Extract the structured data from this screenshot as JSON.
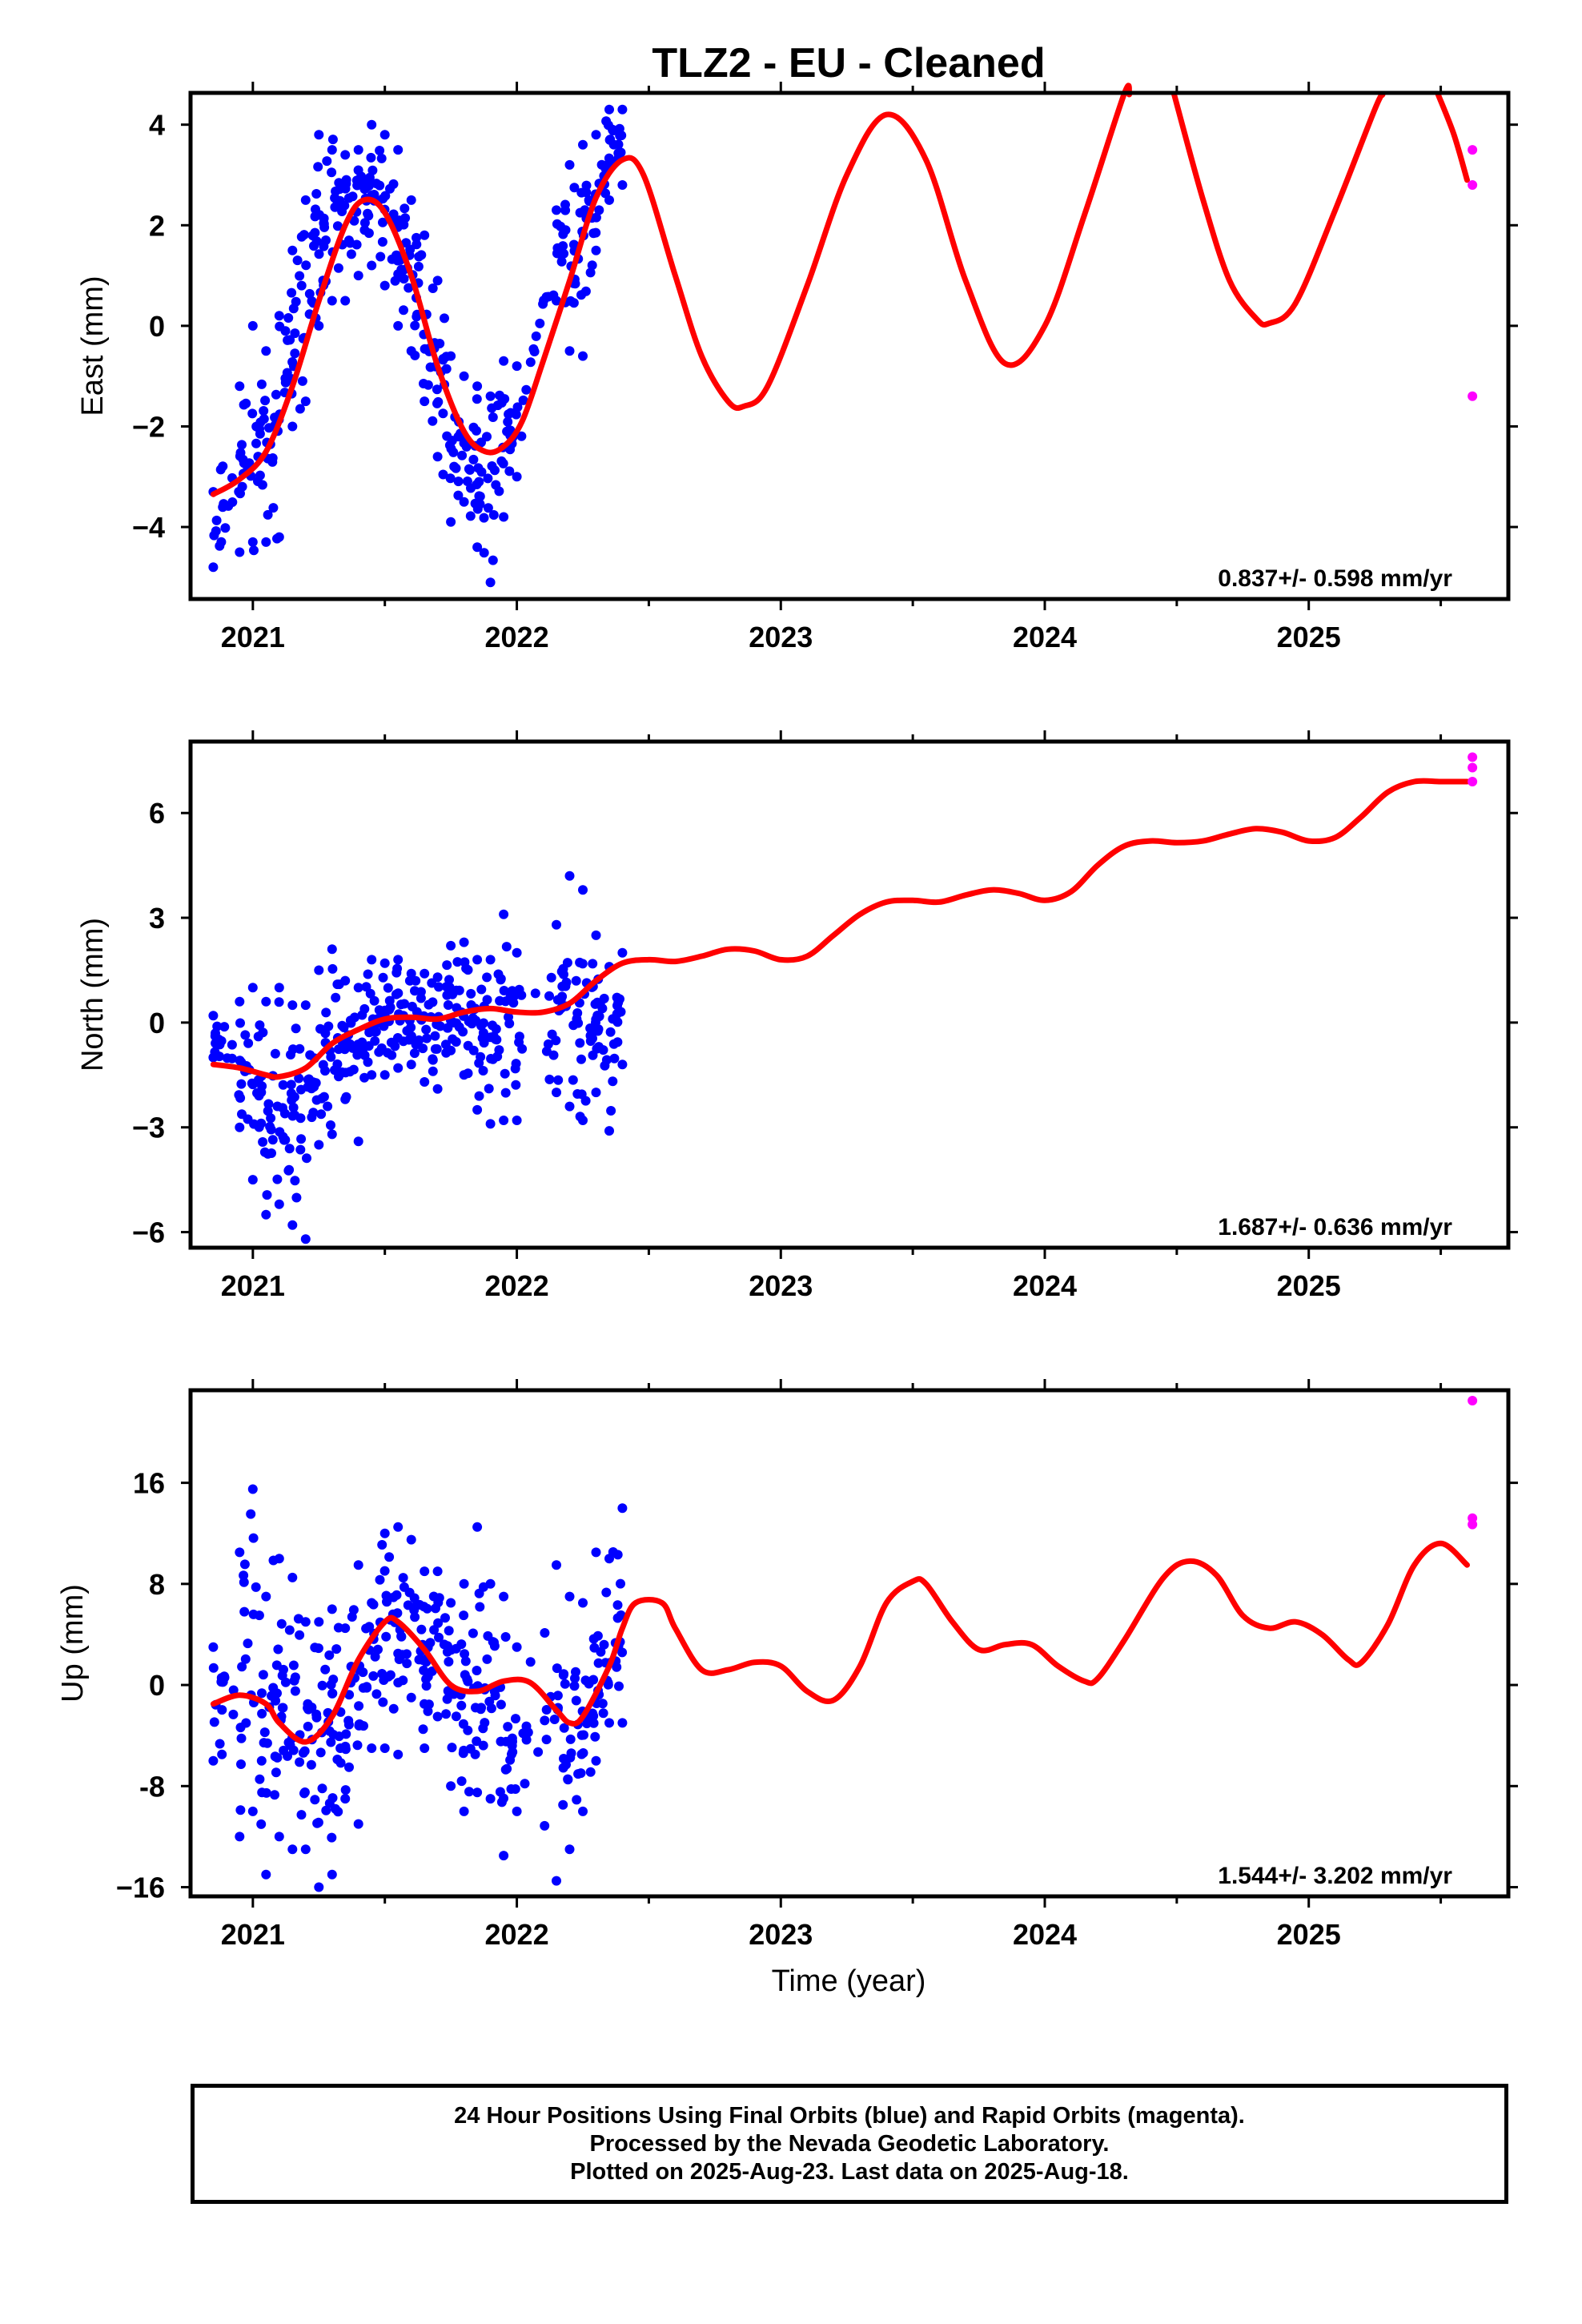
{
  "title": "TLZ2  - EU - Cleaned",
  "xlabel": "Time (year)",
  "caption": {
    "line1": "24 Hour Positions Using Final Orbits (blue) and Rapid Orbits (magenta).",
    "line2": "Processed by the Nevada Geodetic Laboratory.",
    "line3": "Plotted on 2025-Aug-23. Last data on 2025-Aug-18."
  },
  "colors": {
    "final": "#0000ff",
    "rapid": "#ff00ff",
    "model": "#ff0000",
    "frame": "#000000"
  },
  "chart_data": [
    {
      "type": "scatter",
      "ylabel": "East (mm)",
      "rate": "0.837+/- 0.598 mm/yr",
      "xlim": [
        2020.77,
        2025.75
      ],
      "ylim": [
        -5.4,
        4.6
      ],
      "xticks": [
        2021,
        2022,
        2023,
        2024,
        2025
      ],
      "yticks": [
        -4,
        -2,
        0,
        2,
        4
      ],
      "yticklabels": [
        "−4",
        "−2",
        "0",
        "2",
        "4"
      ],
      "model": {
        "x": [
          2020.85,
          2020.95,
          2021.05,
          2021.15,
          2021.25,
          2021.35,
          2021.42,
          2021.5,
          2021.6,
          2021.7,
          2021.8,
          2021.88,
          2021.95,
          2022.02,
          2022.1,
          2022.2,
          2022.3,
          2022.4,
          2022.48,
          2022.6,
          2022.7,
          2022.8,
          2022.86,
          2022.95,
          2023.1,
          2023.25,
          2023.4,
          2023.55,
          2023.7,
          2023.85,
          2024.0,
          2024.15,
          2024.3,
          2024.32
        ],
        "y": [
          -3.35,
          -3.05,
          -2.5,
          -1.2,
          0.5,
          2.0,
          2.5,
          2.25,
          1.0,
          -0.8,
          -2.1,
          -2.5,
          -2.4,
          -1.9,
          -0.7,
          0.9,
          2.55,
          3.3,
          3.0,
          1.0,
          -0.6,
          -1.5,
          -1.6,
          -1.2,
          0.8,
          3.0,
          4.2,
          3.3,
          0.9,
          -0.75,
          0.0,
          2.2,
          4.6,
          4.6
        ]
      },
      "model2": {
        "x": [
          2024.49,
          2024.6,
          2024.7,
          2024.8,
          2024.85,
          2024.95,
          2025.1,
          2025.25,
          2025.28
        ],
        "y": [
          4.6,
          2.5,
          0.9,
          0.15,
          0.05,
          0.45,
          2.3,
          4.3,
          4.6
        ]
      },
      "model3": {
        "x": [
          2025.49,
          2025.55,
          2025.6
        ],
        "y": [
          4.6,
          3.8,
          2.9
        ]
      },
      "rapid": {
        "x": [
          2025.62,
          2025.62,
          2025.62
        ],
        "y": [
          3.5,
          2.8,
          -1.4
        ]
      },
      "final_outline": [
        [
          2020.85,
          -4.8,
          -3.3
        ],
        [
          2020.95,
          -4.5,
          -1.2
        ],
        [
          2021.0,
          -4.3,
          0.0
        ],
        [
          2021.05,
          -4.3,
          -0.5
        ],
        [
          2021.1,
          -4.2,
          0.2
        ],
        [
          2021.15,
          -2.0,
          1.5
        ],
        [
          2021.2,
          -1.5,
          2.5
        ],
        [
          2021.25,
          0.0,
          3.8
        ],
        [
          2021.3,
          0.5,
          3.5
        ],
        [
          2021.35,
          0.5,
          3.4
        ],
        [
          2021.4,
          1.0,
          3.5
        ],
        [
          2021.45,
          1.2,
          4.0
        ],
        [
          2021.5,
          0.8,
          3.8
        ],
        [
          2021.55,
          0.0,
          3.5
        ],
        [
          2021.6,
          -0.5,
          2.5
        ],
        [
          2021.65,
          -1.5,
          1.8
        ],
        [
          2021.7,
          -2.6,
          0.9
        ],
        [
          2021.75,
          -3.9,
          -0.6
        ],
        [
          2021.8,
          -3.5,
          -1.0
        ],
        [
          2021.85,
          -4.4,
          -1.2
        ],
        [
          2021.9,
          -5.1,
          -1.4
        ],
        [
          2021.95,
          -3.8,
          -0.7
        ],
        [
          2022.0,
          -3.0,
          -0.8
        ],
        [
          2022.15,
          0.5,
          2.3
        ],
        [
          2022.2,
          -0.5,
          3.2
        ],
        [
          2022.25,
          -0.6,
          3.6
        ],
        [
          2022.3,
          1.5,
          3.8
        ],
        [
          2022.35,
          2.5,
          4.3
        ],
        [
          2022.4,
          2.8,
          4.3
        ]
      ]
    },
    {
      "type": "scatter",
      "ylabel": "North (mm)",
      "rate": "1.687+/- 0.636 mm/yr",
      "xlim": [
        2020.77,
        2025.75
      ],
      "ylim": [
        -6.4,
        8.0
      ],
      "xticks": [
        2021,
        2022,
        2023,
        2024,
        2025
      ],
      "yticks": [
        -6,
        -3,
        0,
        3,
        6
      ],
      "yticklabels": [
        "−6",
        "−3",
        "0",
        "3",
        "6"
      ],
      "model": {
        "x": [
          2020.85,
          2020.95,
          2021.05,
          2021.1,
          2021.2,
          2021.3,
          2021.4,
          2021.5,
          2021.6,
          2021.7,
          2021.8,
          2021.9,
          2022.0,
          2022.1,
          2022.2,
          2022.3,
          2022.4,
          2022.5,
          2022.6,
          2022.7,
          2022.8,
          2022.9,
          2023.0,
          2023.1,
          2023.2,
          2023.3,
          2023.4,
          2023.5,
          2023.6,
          2023.7,
          2023.8,
          2023.9,
          2024.0,
          2024.1,
          2024.2,
          2024.3,
          2024.4,
          2024.5,
          2024.6,
          2024.7,
          2024.8,
          2024.9,
          2025.0,
          2025.1,
          2025.2,
          2025.3,
          2025.4,
          2025.5,
          2025.6
        ],
        "y": [
          -1.2,
          -1.3,
          -1.5,
          -1.55,
          -1.3,
          -0.6,
          -0.2,
          0.1,
          0.15,
          0.1,
          0.3,
          0.4,
          0.3,
          0.3,
          0.55,
          1.2,
          1.7,
          1.8,
          1.75,
          1.9,
          2.1,
          2.05,
          1.8,
          1.9,
          2.5,
          3.1,
          3.45,
          3.5,
          3.45,
          3.65,
          3.8,
          3.7,
          3.5,
          3.75,
          4.5,
          5.05,
          5.2,
          5.15,
          5.2,
          5.4,
          5.55,
          5.45,
          5.2,
          5.3,
          5.9,
          6.6,
          6.9,
          6.9,
          6.9
        ]
      },
      "rapid": {
        "x": [
          2025.62,
          2025.62,
          2025.62
        ],
        "y": [
          7.6,
          7.3,
          6.9
        ]
      },
      "final_outline": [
        [
          2020.85,
          -1.0,
          0.2
        ],
        [
          2020.95,
          -3.0,
          0.6
        ],
        [
          2021.0,
          -4.5,
          1.0
        ],
        [
          2021.05,
          -5.5,
          0.6
        ],
        [
          2021.1,
          -5.2,
          1.0
        ],
        [
          2021.15,
          -5.8,
          0.5
        ],
        [
          2021.2,
          -6.2,
          0.5
        ],
        [
          2021.25,
          -3.5,
          1.5
        ],
        [
          2021.3,
          -3.2,
          2.1
        ],
        [
          2021.35,
          -2.2,
          1.2
        ],
        [
          2021.4,
          -3.4,
          1.0
        ],
        [
          2021.45,
          -1.5,
          1.8
        ],
        [
          2021.5,
          -1.5,
          1.7
        ],
        [
          2021.55,
          -1.3,
          1.8
        ],
        [
          2021.6,
          -1.2,
          1.4
        ],
        [
          2021.65,
          -1.7,
          1.4
        ],
        [
          2021.7,
          -1.9,
          1.3
        ],
        [
          2021.75,
          -0.8,
          2.2
        ],
        [
          2021.8,
          -1.5,
          2.3
        ],
        [
          2021.85,
          -2.5,
          1.8
        ],
        [
          2021.9,
          -2.9,
          1.8
        ],
        [
          2021.95,
          -2.8,
          3.1
        ],
        [
          2022.0,
          -2.8,
          2.0
        ],
        [
          2022.15,
          -2.0,
          2.8
        ],
        [
          2022.2,
          -2.4,
          4.2
        ],
        [
          2022.25,
          -2.8,
          3.8
        ],
        [
          2022.3,
          -2.0,
          2.5
        ],
        [
          2022.35,
          -3.1,
          1.6
        ],
        [
          2022.4,
          -1.2,
          2.0
        ]
      ]
    },
    {
      "type": "scatter",
      "ylabel": "Up (mm)",
      "rate": "1.544+/- 3.202 mm/yr",
      "xlim": [
        2020.77,
        2025.75
      ],
      "ylim": [
        -16.6,
        23.2
      ],
      "xticks": [
        2021,
        2022,
        2023,
        2024,
        2025
      ],
      "yticks": [
        -16,
        -8,
        0,
        8,
        16
      ],
      "yticklabels": [
        "−16",
        "-8",
        "0",
        "8",
        "16"
      ],
      "model": {
        "x": [
          2020.85,
          2020.95,
          2021.05,
          2021.1,
          2021.2,
          2021.3,
          2021.4,
          2021.5,
          2021.55,
          2021.65,
          2021.75,
          2021.85,
          2021.95,
          2022.05,
          2022.15,
          2022.2,
          2022.25,
          2022.35,
          2022.4,
          2022.45,
          2022.55,
          2022.6,
          2022.7,
          2022.8,
          2022.9,
          2023.0,
          2023.1,
          2023.2,
          2023.3,
          2023.4,
          2023.5,
          2023.55,
          2023.65,
          2023.75,
          2023.85,
          2023.95,
          2024.05,
          2024.15,
          2024.2,
          2024.3,
          2024.45,
          2024.55,
          2024.65,
          2024.75,
          2024.85,
          2024.95,
          2025.05,
          2025.15,
          2025.2,
          2025.3,
          2025.4,
          2025.5,
          2025.6
        ],
        "y": [
          -1.5,
          -0.8,
          -1.5,
          -3.0,
          -4.5,
          -2.5,
          2.0,
          5.0,
          5.0,
          2.8,
          0.0,
          -0.5,
          0.3,
          0.2,
          -2.0,
          -3.0,
          -2.5,
          1.5,
          4.5,
          6.5,
          6.5,
          4.5,
          1.2,
          1.2,
          1.8,
          1.5,
          -0.5,
          -1.2,
          1.5,
          6.5,
          8.2,
          8.0,
          5.0,
          2.8,
          3.2,
          3.2,
          1.5,
          0.3,
          0.5,
          3.5,
          8.5,
          9.8,
          8.7,
          5.5,
          4.5,
          5.0,
          4.0,
          2.0,
          1.8,
          4.8,
          9.5,
          11.2,
          9.5
        ]
      },
      "rapid": {
        "x": [
          2025.62,
          2025.62,
          2025.62
        ],
        "y": [
          22.5,
          13.2,
          12.7
        ]
      },
      "final_outline": [
        [
          2020.85,
          -6.0,
          3.0
        ],
        [
          2020.95,
          -12.0,
          10.5
        ],
        [
          2021.0,
          -10.0,
          15.5
        ],
        [
          2021.05,
          -15.0,
          7.0
        ],
        [
          2021.1,
          -12.0,
          10.0
        ],
        [
          2021.15,
          -13.0,
          8.5
        ],
        [
          2021.2,
          -13.0,
          5.0
        ],
        [
          2021.25,
          -16.0,
          5.0
        ],
        [
          2021.3,
          -15.0,
          6.0
        ],
        [
          2021.35,
          -9.0,
          4.5
        ],
        [
          2021.4,
          -11.0,
          9.5
        ],
        [
          2021.45,
          -5.0,
          6.5
        ],
        [
          2021.5,
          -5.0,
          12.0
        ],
        [
          2021.55,
          -5.5,
          12.5
        ],
        [
          2021.6,
          -1.0,
          11.5
        ],
        [
          2021.65,
          -5.0,
          9.0
        ],
        [
          2021.7,
          -2.5,
          9.0
        ],
        [
          2021.75,
          -8.0,
          6.5
        ],
        [
          2021.8,
          -10.0,
          8.0
        ],
        [
          2021.85,
          -8.5,
          12.5
        ],
        [
          2021.9,
          -9.0,
          8.0
        ],
        [
          2021.95,
          -13.5,
          7.0
        ],
        [
          2022.0,
          -10.0,
          3.0
        ],
        [
          2022.15,
          -15.5,
          9.5
        ],
        [
          2022.2,
          -13.0,
          7.0
        ],
        [
          2022.25,
          -10.0,
          6.5
        ],
        [
          2022.3,
          -6.0,
          10.5
        ],
        [
          2022.35,
          -3.0,
          10.0
        ],
        [
          2022.4,
          -3.0,
          14.0
        ]
      ]
    }
  ]
}
